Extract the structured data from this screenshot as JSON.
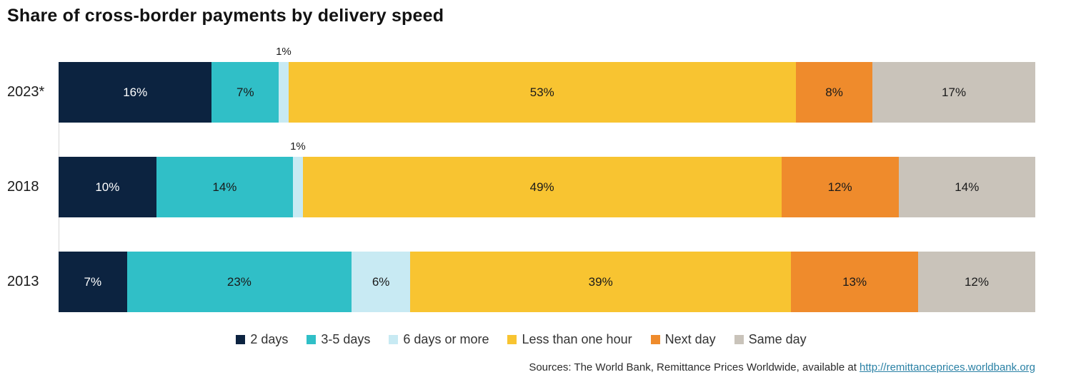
{
  "title": "Share of cross-border payments by delivery speed",
  "chart_data": {
    "type": "bar",
    "orientation": "horizontal",
    "stacked": true,
    "grid": false,
    "legend_position": "bottom",
    "value_suffix": "%",
    "categories": [
      "2023*",
      "2018",
      "2013"
    ],
    "series": [
      {
        "name": "2 days",
        "color": "#0c2340",
        "label_color": "#ffffff",
        "values": [
          16,
          10,
          7
        ]
      },
      {
        "name": "3-5 days",
        "color": "#30bfc7",
        "label_color": "#1a1a1a",
        "values": [
          7,
          14,
          23
        ]
      },
      {
        "name": "6 days or more",
        "color": "#c8eaf3",
        "label_color": "#1a1a1a",
        "values": [
          1,
          1,
          6
        ]
      },
      {
        "name": "Less than one hour",
        "color": "#f8c431",
        "label_color": "#1a1a1a",
        "values": [
          53,
          49,
          39
        ]
      },
      {
        "name": "Next day",
        "color": "#ef8b2c",
        "label_color": "#1a1a1a",
        "values": [
          8,
          12,
          13
        ]
      },
      {
        "name": "Same day",
        "color": "#c9c3ba",
        "label_color": "#1a1a1a",
        "values": [
          17,
          14,
          12
        ]
      }
    ]
  },
  "source": {
    "prefix": "Sources: The World Bank, Remittance Prices Worldwide, available at ",
    "link": "http://remittanceprices.worldbank.org"
  }
}
